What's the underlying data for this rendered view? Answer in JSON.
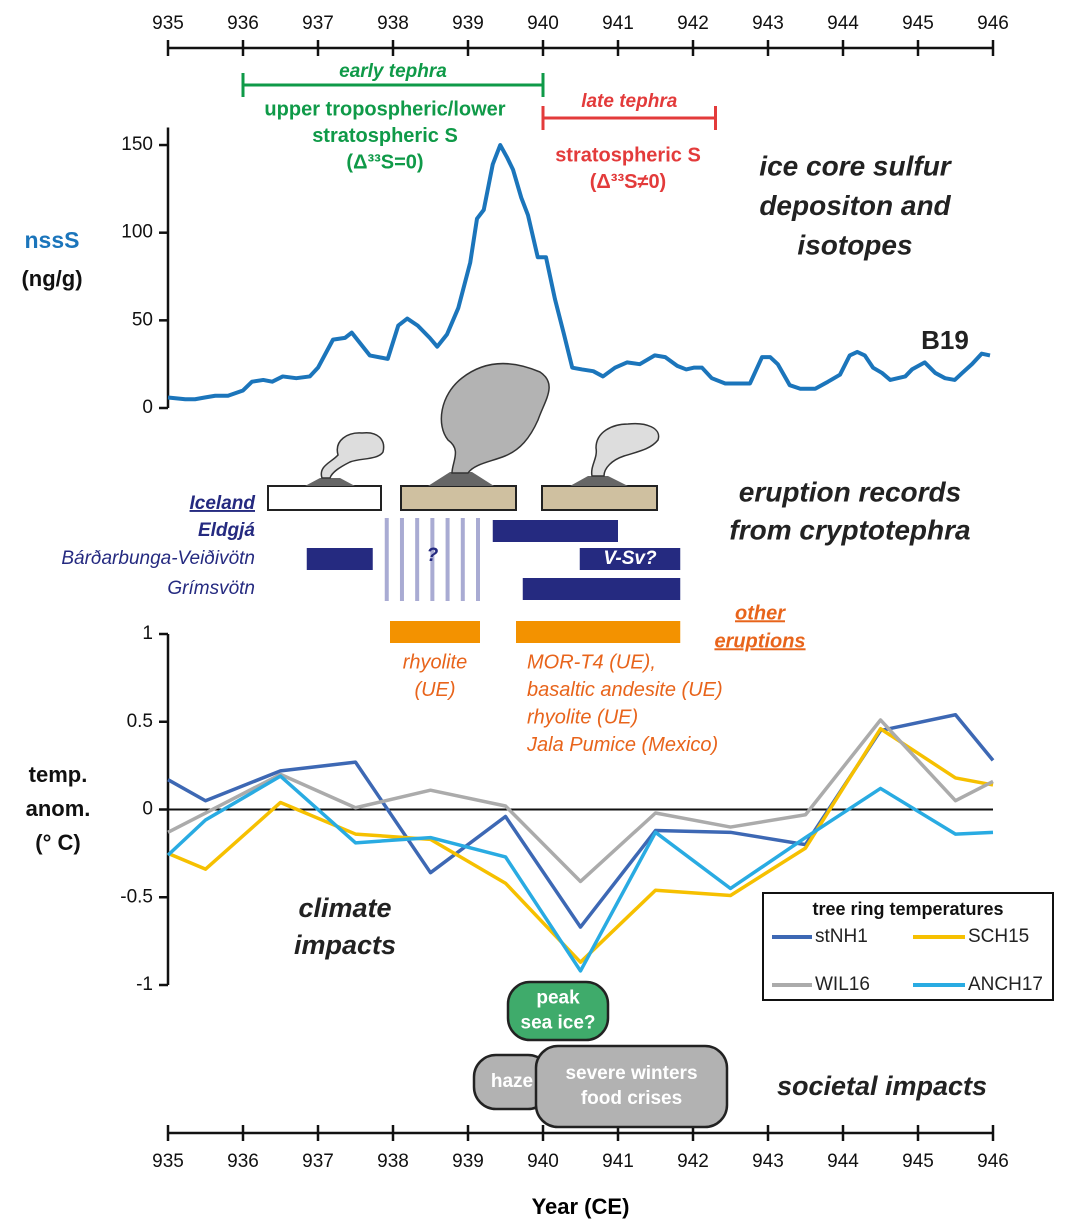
{
  "chart_data": [
    {
      "type": "line",
      "y_label": [
        "nssS",
        "(ng/g)"
      ],
      "panel_title": [
        "ice core sulfur",
        "depositon and",
        "isotopes"
      ],
      "xlim": [
        935,
        946
      ],
      "xticks": [
        935,
        936,
        937,
        938,
        939,
        940,
        941,
        942,
        943,
        944,
        945,
        946
      ],
      "ylim": [
        0,
        160
      ],
      "yticks": [
        0,
        50,
        100,
        150
      ],
      "annotations": [
        {
          "label": "early tephra",
          "range": [
            936,
            940
          ],
          "color": "#0f9a48",
          "note": [
            "upper tropospheric/lower",
            "stratospheric S",
            "(Δ³³S=0)"
          ]
        },
        {
          "label": "late tephra",
          "range": [
            940,
            942.3
          ],
          "color": "#e33b3b",
          "note": [
            "stratospheric S",
            "(Δ³³S≠0)"
          ]
        }
      ],
      "series": [
        {
          "name": "B19",
          "color": "#1b75bb",
          "x": [
            935.0,
            935.23,
            935.36,
            935.49,
            935.63,
            935.8,
            936.0,
            936.12,
            936.27,
            936.39,
            936.53,
            936.71,
            936.89,
            937.0,
            937.2,
            937.36,
            937.45,
            937.69,
            937.93,
            938.07,
            938.19,
            938.33,
            938.49,
            938.59,
            938.72,
            938.87,
            939.03,
            939.12,
            939.21,
            939.33,
            939.43,
            939.52,
            939.6,
            939.71,
            939.8,
            939.93,
            940.04,
            940.16,
            940.28,
            940.39,
            940.52,
            940.67,
            940.8,
            940.96,
            941.12,
            941.29,
            941.49,
            941.63,
            941.79,
            941.91,
            942.01,
            942.12,
            942.25,
            942.43,
            942.63,
            942.76,
            942.92,
            943.03,
            943.13,
            943.29,
            943.43,
            943.63,
            943.8,
            943.96,
            944.09,
            944.19,
            944.29,
            944.4,
            944.52,
            944.63,
            944.73,
            944.83,
            944.92,
            945.09,
            945.23,
            945.36,
            945.49,
            945.59,
            945.72,
            945.85,
            945.96
          ],
          "values": [
            6,
            5,
            5,
            6,
            7,
            7,
            10,
            15,
            16,
            15,
            18,
            17,
            18,
            23,
            39,
            40,
            43,
            30,
            28,
            47,
            51,
            47,
            40,
            35,
            42,
            57,
            83,
            108,
            113,
            139,
            150,
            143,
            136,
            120,
            110,
            86,
            86,
            62,
            42,
            23,
            22,
            21,
            18,
            23,
            26,
            25,
            30,
            29,
            24,
            22,
            23,
            23,
            17,
            14,
            14,
            14,
            29,
            29,
            25,
            13,
            11,
            11,
            15,
            19,
            30,
            32,
            30,
            23,
            20,
            16,
            17,
            18,
            22,
            26,
            20,
            17,
            16,
            20,
            25,
            31,
            30
          ]
        }
      ]
    },
    {
      "type": "line",
      "y_label": [
        "temp.",
        "anom.",
        "(° C)"
      ],
      "panel_title": [
        "climate",
        "impacts"
      ],
      "x_label": "Year (CE)",
      "xlim": [
        935,
        946
      ],
      "xticks": [
        935,
        936,
        937,
        938,
        939,
        940,
        941,
        942,
        943,
        944,
        945,
        946
      ],
      "ylim": [
        -1,
        1
      ],
      "yticks": [
        -1,
        -0.5,
        0,
        0.5,
        1
      ],
      "zero_line": true,
      "legend": "lower right",
      "legend_title": "tree ring temperatures",
      "series": [
        {
          "name": "stNH1",
          "color": "#3d68b4",
          "x": [
            935,
            935.5,
            936.5,
            937.5,
            938.5,
            939.5,
            940.5,
            941.5,
            942.5,
            943.5,
            944.5,
            945.5,
            946
          ],
          "values": [
            0.17,
            0.05,
            0.22,
            0.27,
            -0.36,
            -0.04,
            -0.67,
            -0.12,
            -0.13,
            -0.2,
            0.45,
            0.54,
            0.28
          ]
        },
        {
          "name": "SCH15",
          "color": "#f6c000",
          "x": [
            935,
            935.5,
            936.5,
            937.5,
            938.5,
            939.5,
            940.5,
            941.5,
            942.5,
            943.5,
            944.5,
            945.5,
            946
          ],
          "values": [
            -0.25,
            -0.34,
            0.04,
            -0.14,
            -0.17,
            -0.42,
            -0.87,
            -0.46,
            -0.49,
            -0.22,
            0.46,
            0.18,
            0.14
          ]
        },
        {
          "name": "WIL16",
          "color": "#ababab",
          "x": [
            935,
            935.5,
            936.5,
            937.5,
            938.5,
            939.5,
            940.5,
            941.5,
            942.5,
            943.5,
            944.5,
            945.5,
            946
          ],
          "values": [
            -0.13,
            -0.02,
            0.2,
            0.01,
            0.11,
            0.02,
            -0.41,
            -0.02,
            -0.1,
            -0.03,
            0.51,
            0.05,
            0.16
          ]
        },
        {
          "name": "ANCH17",
          "color": "#29abe2",
          "x": [
            935,
            935.5,
            936.5,
            937.5,
            938.5,
            939.5,
            940.5,
            941.5,
            942.5,
            943.5,
            944.5,
            945.5,
            946
          ],
          "values": [
            -0.26,
            -0.06,
            0.19,
            -0.19,
            -0.16,
            -0.27,
            -0.92,
            -0.13,
            -0.45,
            -0.16,
            0.12,
            -0.14,
            -0.13
          ]
        }
      ]
    }
  ],
  "eruptions": {
    "title": [
      "eruption records",
      "from cryptotephra"
    ],
    "group": "Iceland",
    "color": "#252a80",
    "rows": [
      {
        "name": "Eldgjá",
        "bars": [
          {
            "range": [
              939.33,
              941.0
            ]
          }
        ]
      },
      {
        "name": "Bárðarbunga-Veiðivötn",
        "bars": [
          {
            "range": [
              936.85,
              937.73
            ]
          },
          {
            "range": [
              940.49,
              941.83
            ],
            "label": "V-Sv?"
          }
        ]
      },
      {
        "name": "Grímsvötn",
        "bars": [
          {
            "range": [
              939.73,
              941.83
            ]
          }
        ]
      }
    ],
    "uncertain": {
      "range": [
        937.89,
        939.16
      ],
      "label": "?"
    },
    "other": {
      "title": [
        "other",
        "eruptions"
      ],
      "color": "#f39200",
      "text_color": "#e8641b",
      "bars": [
        {
          "range": [
            937.96,
            939.16
          ],
          "notes": [
            "rhyolite",
            "(UE)"
          ]
        },
        {
          "range": [
            939.64,
            941.83
          ],
          "notes": [
            "MOR-T4 (UE),",
            "basaltic andesite (UE)",
            "rhyolite (UE)",
            "Jala Pumice (Mexico)"
          ]
        }
      ]
    }
  },
  "impacts": {
    "title": "societal impacts",
    "boxes": [
      {
        "text": [
          "peak",
          "sea ice?"
        ],
        "color": "#3fab6b"
      },
      {
        "text": [
          "haze"
        ],
        "color": "#b2b2b2"
      },
      {
        "text": [
          "severe winters",
          "food crises"
        ],
        "color": "#b2b2b2"
      }
    ]
  }
}
